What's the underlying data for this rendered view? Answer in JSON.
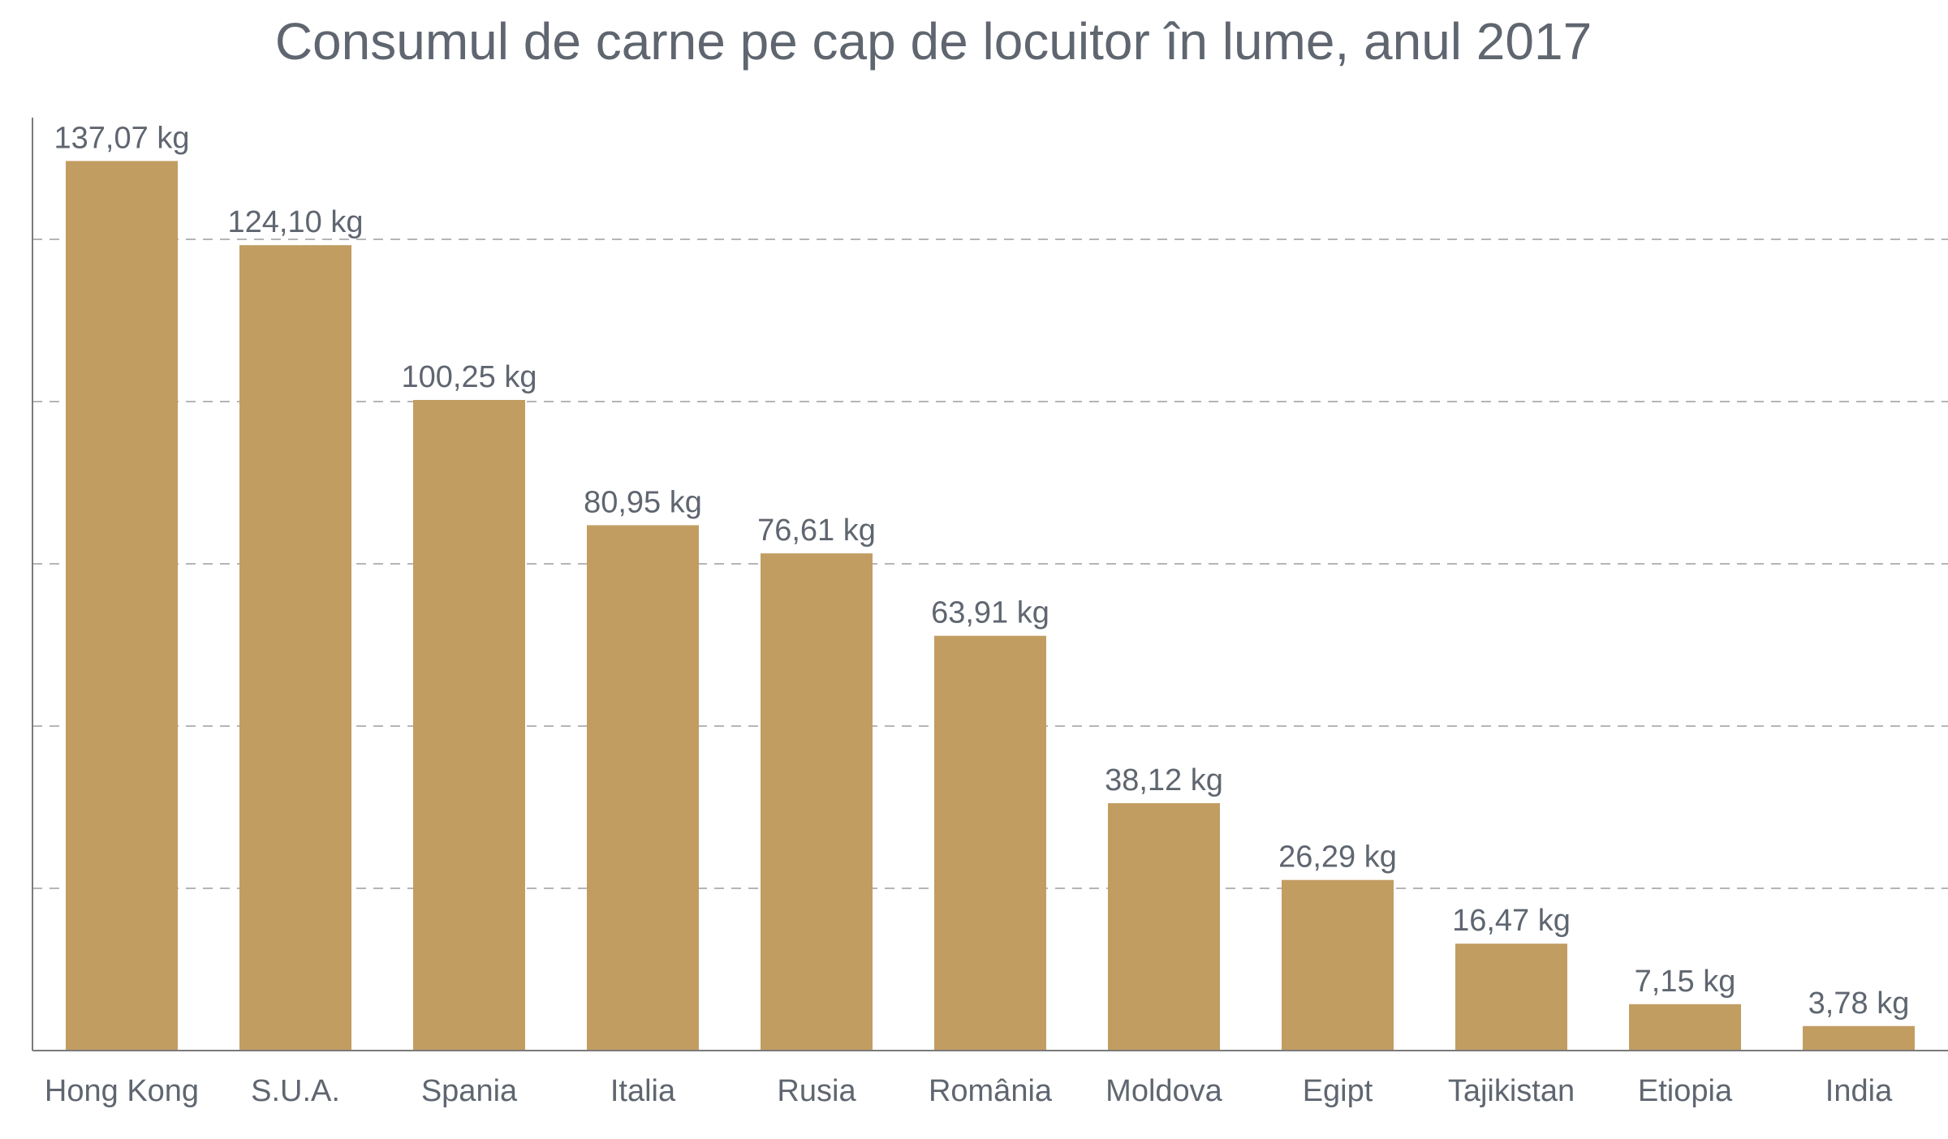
{
  "chart_data": {
    "type": "bar",
    "title": "Consumul de carne pe cap de locuitor în lume, anul 2017",
    "categories": [
      "Hong Kong",
      "S.U.A.",
      "Spania",
      "Italia",
      "Rusia",
      "România",
      "Moldova",
      "Egipt",
      "Tajikistan",
      "Etiopia",
      "India"
    ],
    "values": [
      137.07,
      124.1,
      100.25,
      80.95,
      76.61,
      63.91,
      38.12,
      26.29,
      16.47,
      7.15,
      3.78
    ],
    "data_labels": [
      "137,07 kg",
      "124,10 kg",
      "100,25 kg",
      "80,95 kg",
      "76,61 kg",
      "63,91 kg",
      "38,12 kg",
      "26,29 kg",
      "16,47 kg",
      "7,15 kg",
      "3,78 kg"
    ],
    "xlabel": "",
    "ylabel": "",
    "ylim": [
      0,
      145
    ],
    "grid": true,
    "bar_color": "#c29d62",
    "text_color": "#5f6670",
    "grid_color": "#b5b5b5"
  }
}
